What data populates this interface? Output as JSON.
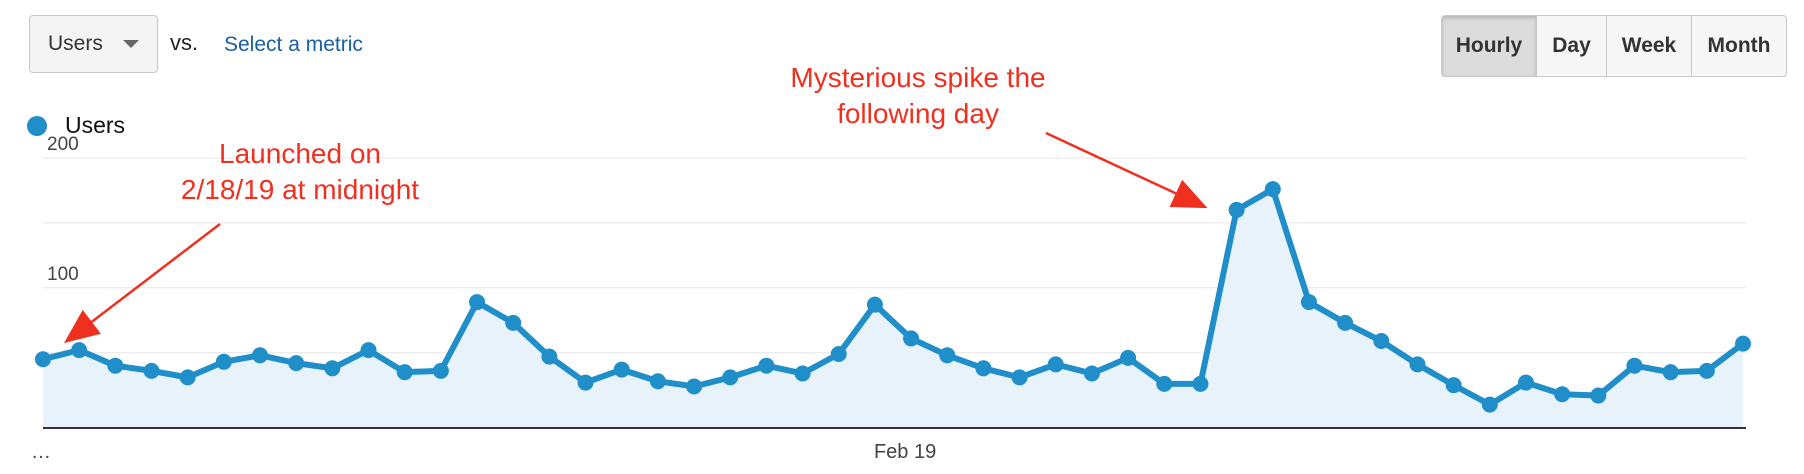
{
  "controls": {
    "primary_metric": "Users",
    "vs_label": "vs.",
    "select_metric_link": "Select a metric",
    "ranges": [
      {
        "label": "Hourly",
        "active": true
      },
      {
        "label": "Day",
        "active": false
      },
      {
        "label": "Week",
        "active": false
      },
      {
        "label": "Month",
        "active": false
      }
    ]
  },
  "legend": {
    "label": "Users",
    "color": "#1f8ec9"
  },
  "annotations": {
    "launch": [
      "Launched on",
      "2/18/19 at midnight"
    ],
    "spike": [
      "Mysterious spike the",
      "following day"
    ],
    "color": "#f0301f"
  },
  "chart_data": {
    "type": "area",
    "title": "",
    "xlabel": "",
    "ylabel": "",
    "series": [
      {
        "name": "Users",
        "color": "#1f8ec9",
        "values": [
          45,
          52,
          40,
          36,
          31,
          43,
          48,
          42,
          38,
          52,
          35,
          36,
          89,
          73,
          47,
          27,
          37,
          28,
          24,
          31,
          40,
          34,
          49,
          87,
          61,
          48,
          38,
          31,
          41,
          34,
          46,
          26,
          26,
          160,
          176,
          89,
          73,
          59,
          41,
          25,
          10,
          27,
          18,
          17,
          40,
          35,
          36,
          57
        ]
      }
    ],
    "x_tick_labels": [
      {
        "index": 0,
        "label": "…"
      },
      {
        "index": 24,
        "label": "Feb 19"
      }
    ],
    "y_ticks": [
      100,
      200
    ],
    "ylim": [
      -8,
      200
    ],
    "grid": true,
    "legend_position": "top-left"
  }
}
